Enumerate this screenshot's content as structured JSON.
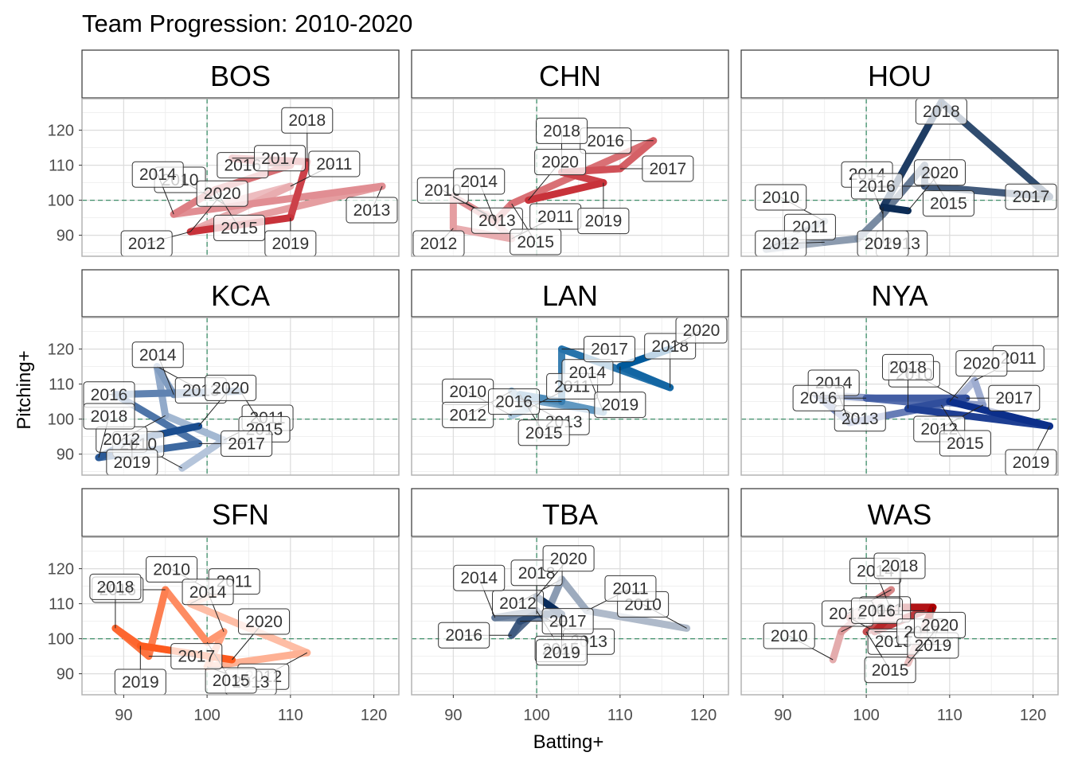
{
  "chart_data": {
    "type": "line",
    "title": "Team Progression: 2010-2020",
    "xlabel": "Batting+",
    "ylabel": "Pitching+",
    "xlim": [
      85,
      123
    ],
    "ylim": [
      84,
      129
    ],
    "x_ticks": [
      90,
      100,
      110,
      120
    ],
    "y_ticks": [
      90,
      100,
      110,
      120
    ],
    "reference_lines": {
      "x": 100,
      "y": 100
    },
    "grid": true,
    "facets": [
      {
        "team": "BOS",
        "color": "#C8323A",
        "points": [
          {
            "year": "2010",
            "x": 102.0,
            "y": 99.0
          },
          {
            "year": "2011",
            "x": 110.0,
            "y": 104.0
          },
          {
            "year": "2012",
            "x": 98.0,
            "y": 91.0
          },
          {
            "year": "2013",
            "x": 121.0,
            "y": 104.0
          },
          {
            "year": "2014",
            "x": 96.0,
            "y": 96.0
          },
          {
            "year": "2015",
            "x": 101.0,
            "y": 103.0
          },
          {
            "year": "2016",
            "x": 110.0,
            "y": 110.0
          },
          {
            "year": "2017",
            "x": 103.0,
            "y": 112.0
          },
          {
            "year": "2018",
            "x": 112.0,
            "y": 111.0
          },
          {
            "year": "2019",
            "x": 110.0,
            "y": 95.0
          },
          {
            "year": "2020",
            "x": 98.0,
            "y": 91.0
          }
        ]
      },
      {
        "team": "CHN",
        "color": "#C8323A",
        "points": [
          {
            "year": "2010",
            "x": 94.0,
            "y": 96.0
          },
          {
            "year": "2011",
            "x": 97.0,
            "y": 89.0
          },
          {
            "year": "2012",
            "x": 90.0,
            "y": 92.0
          },
          {
            "year": "2013",
            "x": 90.0,
            "y": 101.0
          },
          {
            "year": "2014",
            "x": 95.0,
            "y": 94.0
          },
          {
            "year": "2015",
            "x": 97.0,
            "y": 99.0
          },
          {
            "year": "2016",
            "x": 114.0,
            "y": 117.0
          },
          {
            "year": "2017",
            "x": 110.0,
            "y": 109.0
          },
          {
            "year": "2018",
            "x": 103.0,
            "y": 108.0
          },
          {
            "year": "2019",
            "x": 108.0,
            "y": 105.0
          },
          {
            "year": "2020",
            "x": 99.0,
            "y": 100.0
          }
        ]
      },
      {
        "team": "HOU",
        "color": "#0C2C56",
        "points": [
          {
            "year": "2010",
            "x": 95.0,
            "y": 94.0
          },
          {
            "year": "2011",
            "x": 88.0,
            "y": 86.0
          },
          {
            "year": "2012",
            "x": 95.0,
            "y": 88.0
          },
          {
            "year": "2013",
            "x": 99.0,
            "y": 89.0
          },
          {
            "year": "2014",
            "x": 102.0,
            "y": 96.0
          },
          {
            "year": "2015",
            "x": 107.0,
            "y": 110.0
          },
          {
            "year": "2016",
            "x": 107.0,
            "y": 104.0
          },
          {
            "year": "2017",
            "x": 122.0,
            "y": 101.0
          },
          {
            "year": "2018",
            "x": 109.0,
            "y": 128.0
          },
          {
            "year": "2019",
            "x": 102.0,
            "y": 98.0
          },
          {
            "year": "2020",
            "x": 105.0,
            "y": 97.0
          }
        ]
      },
      {
        "team": "KCA",
        "color": "#1A4D8F",
        "points": [
          {
            "year": "2010",
            "x": 97.0,
            "y": 86.0
          },
          {
            "year": "2011",
            "x": 102.0,
            "y": 94.0
          },
          {
            "year": "2012",
            "x": 95.0,
            "y": 101.0
          },
          {
            "year": "2013",
            "x": 94.0,
            "y": 115.0
          },
          {
            "year": "2014",
            "x": 96.0,
            "y": 107.0
          },
          {
            "year": "2015",
            "x": 104.0,
            "y": 108.0
          },
          {
            "year": "2016",
            "x": 89.0,
            "y": 107.0
          },
          {
            "year": "2017",
            "x": 99.0,
            "y": 93.0
          },
          {
            "year": "2018",
            "x": 87.0,
            "y": 89.0
          },
          {
            "year": "2019",
            "x": 91.0,
            "y": 94.0
          },
          {
            "year": "2020",
            "x": 99.0,
            "y": 98.0
          }
        ]
      },
      {
        "team": "LAN",
        "color": "#005A9C",
        "points": [
          {
            "year": "2010",
            "x": 97.0,
            "y": 101.0
          },
          {
            "year": "2011",
            "x": 99.0,
            "y": 103.0
          },
          {
            "year": "2012",
            "x": 97.0,
            "y": 108.0
          },
          {
            "year": "2013",
            "x": 98.0,
            "y": 106.0
          },
          {
            "year": "2014",
            "x": 108.0,
            "y": 102.0
          },
          {
            "year": "2015",
            "x": 98.0,
            "y": 107.0
          },
          {
            "year": "2016",
            "x": 103.0,
            "y": 105.0
          },
          {
            "year": "2017",
            "x": 103.0,
            "y": 120.0
          },
          {
            "year": "2018",
            "x": 116.0,
            "y": 109.0
          },
          {
            "year": "2019",
            "x": 110.0,
            "y": 115.0
          },
          {
            "year": "2020",
            "x": 116.0,
            "y": 120.0
          }
        ]
      },
      {
        "team": "NYA",
        "color": "#0C2F8A",
        "points": [
          {
            "year": "2010",
            "x": 111.0,
            "y": 106.0
          },
          {
            "year": "2011",
            "x": 113.0,
            "y": 111.0
          },
          {
            "year": "2012",
            "x": 114.0,
            "y": 104.0
          },
          {
            "year": "2013",
            "x": 94.0,
            "y": 107.0
          },
          {
            "year": "2014",
            "x": 98.0,
            "y": 99.0
          },
          {
            "year": "2015",
            "x": 109.0,
            "y": 104.0
          },
          {
            "year": "2016",
            "x": 100.0,
            "y": 106.0
          },
          {
            "year": "2017",
            "x": 112.0,
            "y": 106.0
          },
          {
            "year": "2018",
            "x": 105.0,
            "y": 103.0
          },
          {
            "year": "2019",
            "x": 122.0,
            "y": 98.0
          },
          {
            "year": "2020",
            "x": 110.0,
            "y": 105.0
          }
        ]
      },
      {
        "team": "SFN",
        "color": "#FD5A1E",
        "points": [
          {
            "year": "2010",
            "x": 101.0,
            "y": 113.0
          },
          {
            "year": "2011",
            "x": 98.0,
            "y": 110.0
          },
          {
            "year": "2012",
            "x": 112.0,
            "y": 96.0
          },
          {
            "year": "2013",
            "x": 100.0,
            "y": 92.0
          },
          {
            "year": "2014",
            "x": 102.0,
            "y": 102.0
          },
          {
            "year": "2015",
            "x": 100.0,
            "y": 99.0
          },
          {
            "year": "2016",
            "x": 95.0,
            "y": 114.0
          },
          {
            "year": "2017",
            "x": 93.0,
            "y": 95.0
          },
          {
            "year": "2018",
            "x": 89.0,
            "y": 103.0
          },
          {
            "year": "2019",
            "x": 92.0,
            "y": 98.0
          },
          {
            "year": "2020",
            "x": 103.0,
            "y": 94.0
          }
        ]
      },
      {
        "team": "TBA",
        "color": "#092C5C",
        "points": [
          {
            "year": "2010",
            "x": 118.0,
            "y": 103.0
          },
          {
            "year": "2011",
            "x": 106.0,
            "y": 108.0
          },
          {
            "year": "2012",
            "x": 103.0,
            "y": 117.0
          },
          {
            "year": "2013",
            "x": 101.0,
            "y": 106.0
          },
          {
            "year": "2014",
            "x": 95.0,
            "y": 106.0
          },
          {
            "year": "2015",
            "x": 100.0,
            "y": 108.0
          },
          {
            "year": "2016",
            "x": 97.0,
            "y": 101.0
          },
          {
            "year": "2017",
            "x": 98.0,
            "y": 105.0
          },
          {
            "year": "2018",
            "x": 100.0,
            "y": 107.0
          },
          {
            "year": "2019",
            "x": 103.0,
            "y": 107.0
          },
          {
            "year": "2020",
            "x": 100.0,
            "y": 112.0
          }
        ]
      },
      {
        "team": "WAS",
        "color": "#AB0003",
        "points": [
          {
            "year": "2010",
            "x": 96.0,
            "y": 94.0
          },
          {
            "year": "2011",
            "x": 97.0,
            "y": 102.0
          },
          {
            "year": "2012",
            "x": 103.0,
            "y": 114.0
          },
          {
            "year": "2013",
            "x": 98.0,
            "y": 106.0
          },
          {
            "year": "2014",
            "x": 103.0,
            "y": 108.0
          },
          {
            "year": "2015",
            "x": 100.0,
            "y": 102.0
          },
          {
            "year": "2016",
            "x": 107.0,
            "y": 108.0
          },
          {
            "year": "2017",
            "x": 101.0,
            "y": 102.0
          },
          {
            "year": "2018",
            "x": 104.0,
            "y": 109.0
          },
          {
            "year": "2019",
            "x": 108.0,
            "y": 109.0
          },
          {
            "year": "2020",
            "x": 105.0,
            "y": 93.0
          }
        ]
      }
    ]
  }
}
